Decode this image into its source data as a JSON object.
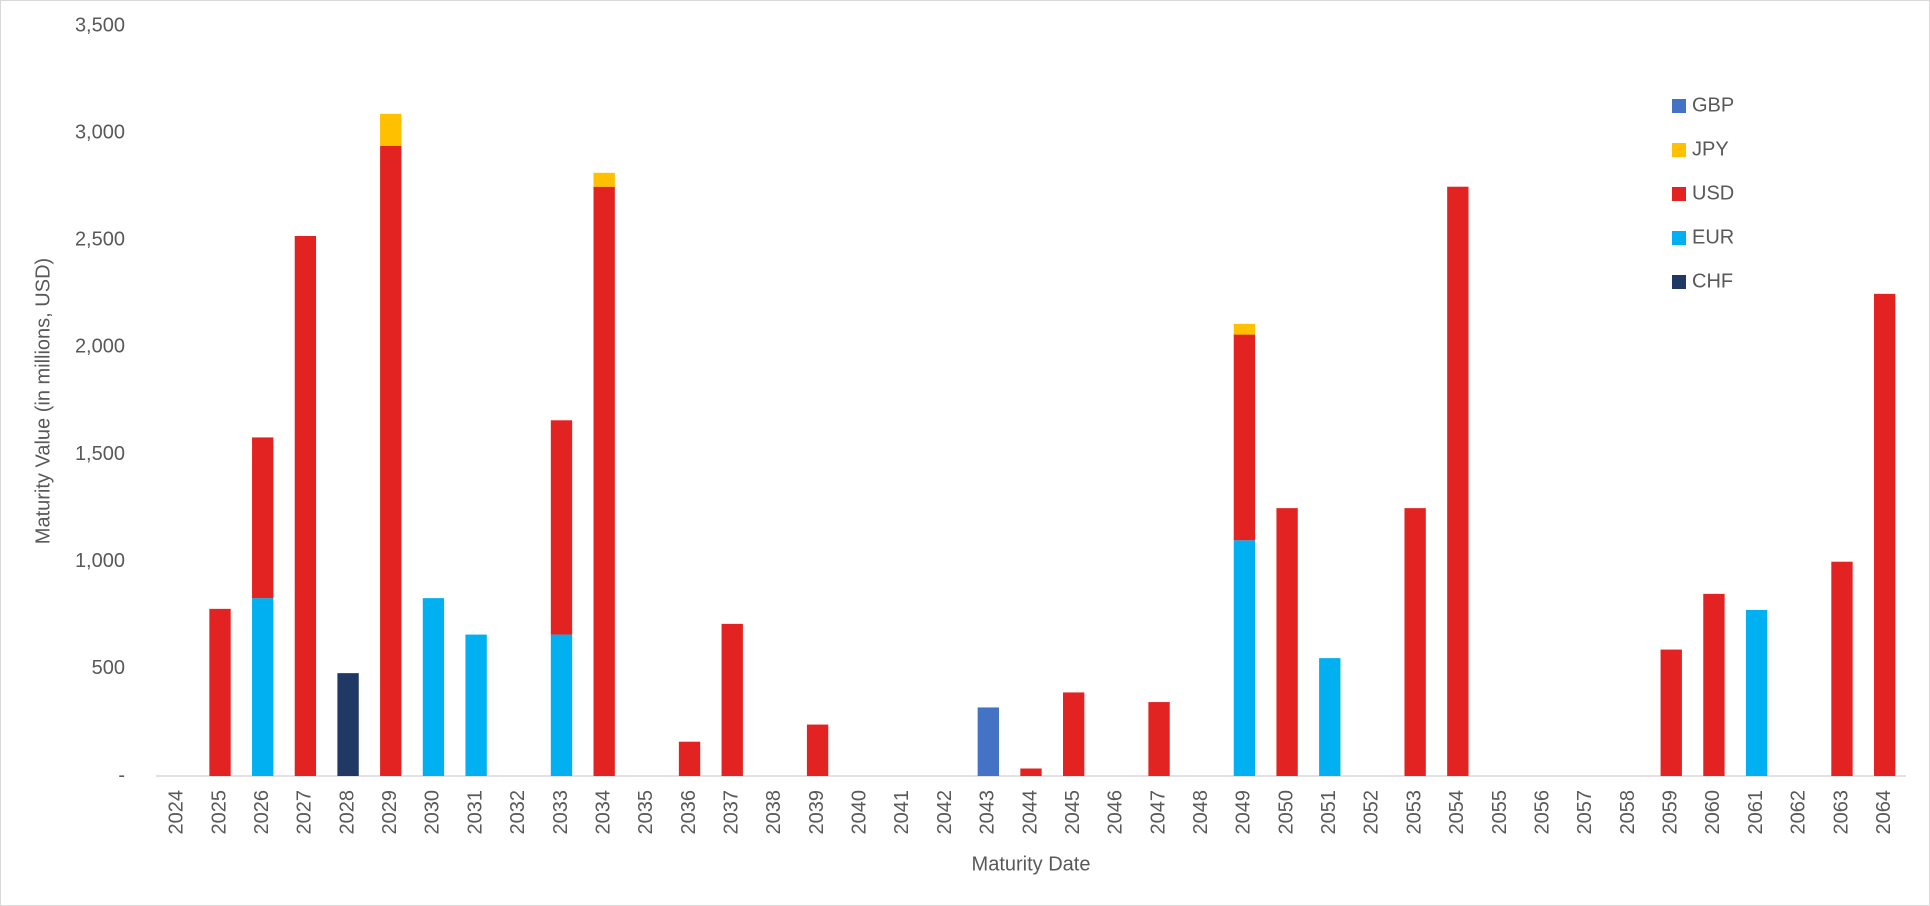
{
  "chart_data": {
    "type": "stacked-bar",
    "x_label": "Maturity Date",
    "y_label": "Maturity Value (in millions, USD)",
    "categories": [
      "2024",
      "2025",
      "2026",
      "2027",
      "2028",
      "2029",
      "2030",
      "2031",
      "2032",
      "2033",
      "2034",
      "2035",
      "2036",
      "2037",
      "2038",
      "2039",
      "2040",
      "2041",
      "2042",
      "2043",
      "2044",
      "2045",
      "2046",
      "2047",
      "2048",
      "2049",
      "2050",
      "2051",
      "2052",
      "2053",
      "2054",
      "2055",
      "2056",
      "2057",
      "2058",
      "2059",
      "2060",
      "2061",
      "2062",
      "2063",
      "2064"
    ],
    "series": [
      {
        "name": "CHF",
        "color": "#1f3864",
        "values": [
          null,
          null,
          null,
          null,
          480,
          null,
          null,
          null,
          null,
          null,
          null,
          null,
          null,
          null,
          null,
          null,
          null,
          null,
          null,
          null,
          null,
          null,
          null,
          null,
          null,
          null,
          null,
          null,
          null,
          null,
          null,
          null,
          null,
          null,
          null,
          null,
          null,
          null,
          null,
          null,
          null
        ]
      },
      {
        "name": "EUR",
        "color": "#00b0f0",
        "values": [
          null,
          null,
          830,
          null,
          null,
          null,
          830,
          660,
          null,
          660,
          null,
          null,
          null,
          null,
          null,
          null,
          null,
          null,
          null,
          null,
          null,
          null,
          null,
          null,
          null,
          1100,
          null,
          550,
          null,
          null,
          null,
          null,
          null,
          null,
          null,
          null,
          null,
          775,
          null,
          null,
          null
        ]
      },
      {
        "name": "USD",
        "color": "#e32322",
        "values": [
          null,
          780,
          750,
          2520,
          null,
          2940,
          null,
          null,
          null,
          1000,
          2750,
          null,
          160,
          710,
          null,
          240,
          null,
          null,
          null,
          null,
          35,
          390,
          null,
          345,
          null,
          960,
          1250,
          null,
          null,
          1250,
          2750,
          null,
          null,
          null,
          null,
          590,
          850,
          null,
          null,
          1000,
          2250
        ]
      },
      {
        "name": "JPY",
        "color": "#ffc000",
        "values": [
          null,
          null,
          null,
          null,
          null,
          150,
          null,
          null,
          null,
          null,
          65,
          null,
          null,
          null,
          null,
          null,
          null,
          null,
          null,
          null,
          null,
          null,
          null,
          null,
          null,
          50,
          null,
          null,
          null,
          null,
          null,
          null,
          null,
          null,
          null,
          null,
          null,
          null,
          null,
          null,
          null
        ]
      },
      {
        "name": "GBP",
        "color": "#4472c4",
        "values": [
          null,
          null,
          null,
          null,
          null,
          null,
          null,
          null,
          null,
          null,
          null,
          null,
          null,
          null,
          null,
          null,
          null,
          null,
          null,
          320,
          null,
          null,
          null,
          null,
          null,
          null,
          null,
          null,
          null,
          null,
          null,
          null,
          null,
          null,
          null,
          null,
          null,
          null,
          null,
          null,
          null
        ]
      }
    ],
    "ylim": [
      0,
      3500
    ],
    "yticks": [
      {
        "value": 0,
        "label": "-"
      },
      {
        "value": 500,
        "label": "500"
      },
      {
        "value": 1000,
        "label": "1,000"
      },
      {
        "value": 1500,
        "label": "1,500"
      },
      {
        "value": 2000,
        "label": "2,000"
      },
      {
        "value": 2500,
        "label": "2,500"
      },
      {
        "value": 3000,
        "label": "3,000"
      },
      {
        "value": 3500,
        "label": "3,500"
      }
    ],
    "legend": "top-right"
  }
}
